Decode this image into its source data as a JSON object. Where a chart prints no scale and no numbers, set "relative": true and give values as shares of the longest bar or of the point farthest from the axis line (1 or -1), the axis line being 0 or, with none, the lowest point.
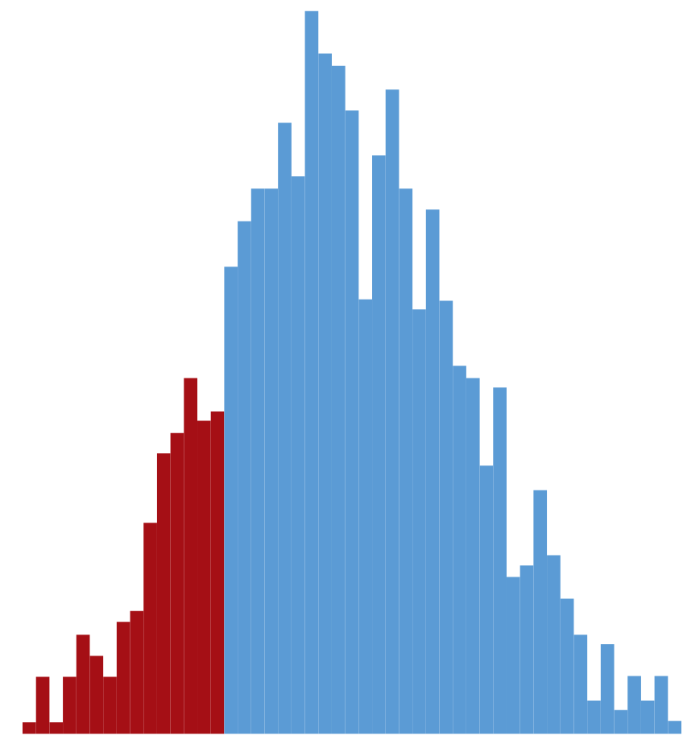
{
  "chart_data": {
    "type": "bar",
    "relative": true,
    "tick_labels": false,
    "categories": [
      null,
      null,
      null,
      null,
      null,
      null,
      null,
      null,
      null,
      null,
      null,
      null,
      null,
      null,
      null,
      null,
      null,
      null,
      null,
      null,
      null,
      null,
      null,
      null,
      null,
      null,
      null,
      null,
      null,
      null,
      null,
      null,
      null,
      null,
      null,
      null,
      null,
      null,
      null,
      null,
      null,
      null,
      null,
      null,
      null,
      null,
      null,
      null,
      null
    ],
    "values": [
      0.016,
      0.079,
      0.016,
      0.079,
      0.137,
      0.108,
      0.079,
      0.155,
      0.17,
      0.292,
      0.388,
      0.416,
      0.492,
      0.433,
      0.446,
      0.646,
      0.709,
      0.754,
      0.754,
      0.845,
      0.771,
      1,
      0.941,
      0.924,
      0.862,
      0.601,
      0.8,
      0.891,
      0.754,
      0.587,
      0.725,
      0.599,
      0.509,
      0.492,
      0.371,
      0.479,
      0.217,
      0.233,
      0.337,
      0.247,
      0.187,
      0.137,
      0.046,
      0.124,
      0.033,
      0.08,
      0.046,
      0.08,
      0.018
    ],
    "colors": [
      "#a50f15",
      "#a50f15",
      "#a50f15",
      "#a50f15",
      "#a50f15",
      "#a50f15",
      "#a50f15",
      "#a50f15",
      "#a50f15",
      "#a50f15",
      "#a50f15",
      "#a50f15",
      "#a50f15",
      "#a50f15",
      "#a50f15",
      "#5b9bd5",
      "#5b9bd5",
      "#5b9bd5",
      "#5b9bd5",
      "#5b9bd5",
      "#5b9bd5",
      "#5b9bd5",
      "#5b9bd5",
      "#5b9bd5",
      "#5b9bd5",
      "#5b9bd5",
      "#5b9bd5",
      "#5b9bd5",
      "#5b9bd5",
      "#5b9bd5",
      "#5b9bd5",
      "#5b9bd5",
      "#5b9bd5",
      "#5b9bd5",
      "#5b9bd5",
      "#5b9bd5",
      "#5b9bd5",
      "#5b9bd5",
      "#5b9bd5",
      "#5b9bd5",
      "#5b9bd5",
      "#5b9bd5",
      "#5b9bd5",
      "#5b9bd5",
      "#5b9bd5",
      "#5b9bd5",
      "#5b9bd5",
      "#5b9bd5",
      "#5b9bd5"
    ]
  }
}
